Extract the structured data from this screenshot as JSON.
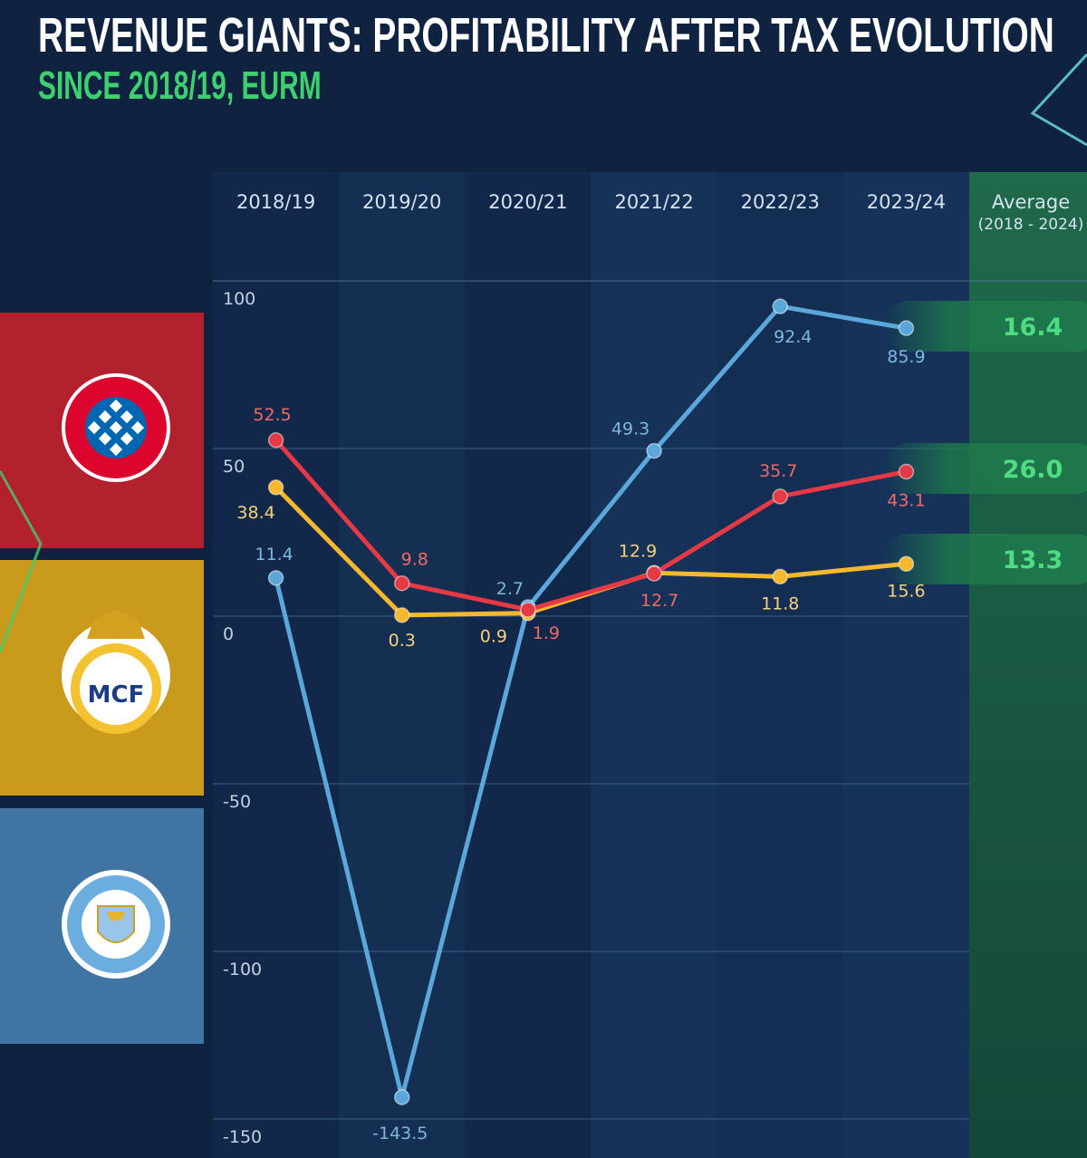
{
  "chart_data": {
    "type": "line",
    "title": "REVENUE GIANTS: PROFITABILITY AFTER TAX EVOLUTION",
    "subtitle": "SINCE 2018/19, EURM",
    "categories": [
      "2018/19",
      "2019/20",
      "2020/21",
      "2021/22",
      "2022/23",
      "2023/24"
    ],
    "ylim": [
      -150,
      100
    ],
    "yticks": [
      100,
      50,
      0,
      -50,
      -100,
      -150
    ],
    "grid": true,
    "average_header": {
      "line1": "Average",
      "line2": "(2018 - 2024)"
    },
    "series": [
      {
        "club": "FC Bayern München",
        "color": "#e63946",
        "values": [
          52.5,
          9.8,
          1.9,
          12.7,
          35.7,
          43.1
        ],
        "average": "26.0"
      },
      {
        "club": "Real Madrid",
        "color": "#f5b82e",
        "values": [
          38.4,
          0.3,
          0.9,
          12.9,
          11.8,
          15.6
        ],
        "average": "13.3"
      },
      {
        "club": "Manchester City",
        "color": "#5aa7dc",
        "values": [
          11.4,
          -143.5,
          2.7,
          49.3,
          92.4,
          85.9
        ],
        "average": "16.4"
      }
    ],
    "label_colors": {
      "#e63946": "#f06a6a",
      "#f5b82e": "#f6d27a",
      "#5aa7dc": "#7fb6de"
    },
    "logos": [
      {
        "club": "FC Bayern München",
        "text": "FC BAYERN MÜNCHEN",
        "band": "#b3202e"
      },
      {
        "club": "Real Madrid",
        "text": "MCF",
        "band": "#c99a1c"
      },
      {
        "club": "Manchester City",
        "text": "MANCHESTER CITY",
        "band": "#3f74a3"
      }
    ]
  }
}
